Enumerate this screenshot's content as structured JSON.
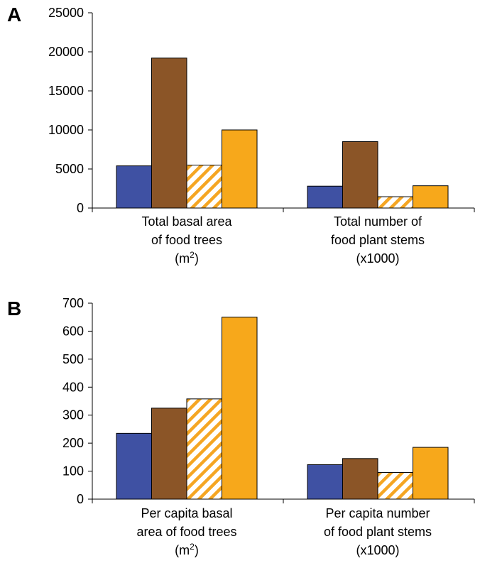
{
  "colors": {
    "series1": "#3f51a3",
    "series2": "#8b5527",
    "series3_hatch": "#f5a623",
    "series4": "#f7a81b"
  },
  "chart_data": [
    {
      "type": "bar",
      "panel_label": "A",
      "ylim": [
        0,
        25000
      ],
      "yticks": [
        0,
        5000,
        10000,
        15000,
        20000,
        25000
      ],
      "categories": [
        [
          "Total basal area",
          "of food trees",
          "(m",
          "2",
          ")"
        ],
        [
          "Total number of",
          "food plant stems",
          "(x1000)"
        ]
      ],
      "series": [
        {
          "values": [
            5400,
            2800
          ],
          "style": "solid-blue"
        },
        {
          "values": [
            19200,
            8500
          ],
          "style": "solid-brown"
        },
        {
          "values": [
            5500,
            1450
          ],
          "style": "hatched-orange"
        },
        {
          "values": [
            10000,
            2850
          ],
          "style": "solid-orange"
        }
      ]
    },
    {
      "type": "bar",
      "panel_label": "B",
      "ylim": [
        0,
        700
      ],
      "yticks": [
        0,
        100,
        200,
        300,
        400,
        500,
        600,
        700
      ],
      "categories": [
        [
          "Per capita basal",
          "area of food trees",
          "(m",
          "2",
          ")"
        ],
        [
          "Per capita number",
          "of food plant stems",
          "(x1000)"
        ]
      ],
      "series": [
        {
          "values": [
            235,
            123
          ],
          "style": "solid-blue"
        },
        {
          "values": [
            325,
            145
          ],
          "style": "solid-brown"
        },
        {
          "values": [
            358,
            95
          ],
          "style": "hatched-orange"
        },
        {
          "values": [
            650,
            185
          ],
          "style": "solid-orange"
        }
      ]
    }
  ]
}
